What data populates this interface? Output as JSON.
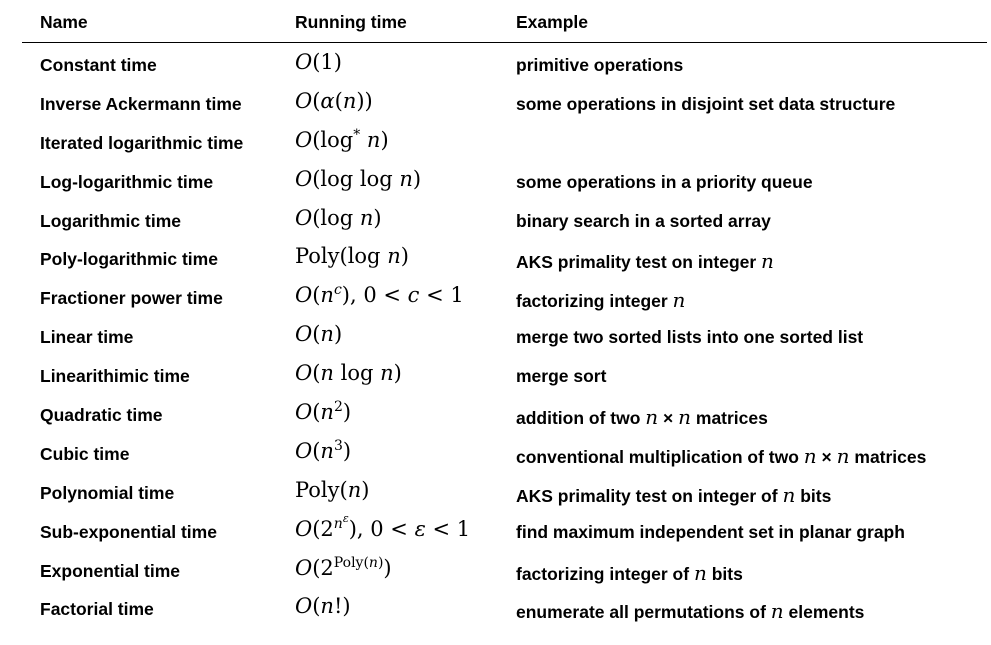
{
  "table": {
    "headers": {
      "name": "Name",
      "running_time": "Running time",
      "example": "Example"
    },
    "rows": [
      {
        "name": "Constant time",
        "running_time": "O(1)",
        "example": "primitive operations"
      },
      {
        "name": "Inverse Ackermann time",
        "running_time": "O(α(n))",
        "example": "some operations in disjoint set data structure"
      },
      {
        "name": "Iterated logarithmic time",
        "running_time": "O(log* n)",
        "example": ""
      },
      {
        "name": "Log-logarithmic time",
        "running_time": "O(log log n)",
        "example": "some operations in a priority queue"
      },
      {
        "name": "Logarithmic time",
        "running_time": "O(log n)",
        "example": "binary search in a sorted array"
      },
      {
        "name": "Poly-logarithmic time",
        "running_time": "Poly(log n)",
        "example": "AKS primality test on integer n"
      },
      {
        "name": "Fractioner power time",
        "running_time": "O(n^c), 0 < c < 1",
        "example": "factorizing integer n"
      },
      {
        "name": "Linear time",
        "running_time": "O(n)",
        "example": "merge two sorted lists into one sorted list"
      },
      {
        "name": "Linearithimic time",
        "running_time": "O(n log n)",
        "example": "merge sort"
      },
      {
        "name": "Quadratic time",
        "running_time": "O(n^2)",
        "example": "addition of two n × n matrices"
      },
      {
        "name": "Cubic time",
        "running_time": "O(n^3)",
        "example": "conventional multiplication of two n × n matrices"
      },
      {
        "name": "Polynomial time",
        "running_time": "Poly(n)",
        "example": "AKS primality test on integer of n bits"
      },
      {
        "name": "Sub-exponential time",
        "running_time": "O(2^(n^ε)), 0 < ε < 1",
        "example": "find maximum independent set in planar graph"
      },
      {
        "name": "Exponential time",
        "running_time": "O(2^Poly(n))",
        "example": "factorizing integer of n bits"
      },
      {
        "name": "Factorial time",
        "running_time": "O(n!)",
        "example": "enumerate all permutations of n elements"
      }
    ]
  }
}
